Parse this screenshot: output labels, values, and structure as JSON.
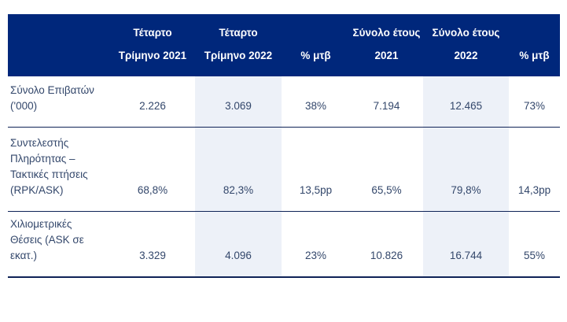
{
  "page": {
    "background": "#ffffff"
  },
  "table": {
    "name": "traffic-results-table",
    "colors": {
      "header_bg": "#00277b",
      "header_text": "#ffffff",
      "body_text": "#33476b",
      "highlight_bg": "#edf1f8",
      "border": "#0f2357"
    },
    "headers": [
      {
        "label": ""
      },
      {
        "label": "Τέταρτο\nΤρίμηνο 2021"
      },
      {
        "label": "Τέταρτο\nΤρίμηνο 2022",
        "highlight": true
      },
      {
        "label": "% μτβ"
      },
      {
        "label": "Σύνολο έτους\n2021"
      },
      {
        "label": "Σύνολο έτους\n2022",
        "highlight": true
      },
      {
        "label": "% μτβ"
      }
    ],
    "rows": [
      {
        "label": "Σύνολο Επιβατών\n('000)",
        "values": [
          "2.226",
          "3.069",
          "38%",
          "7.194",
          "12.465",
          "73%"
        ]
      },
      {
        "label": "Συντελεστής\nΠληρότητας –\nΤακτικές πτήσεις\n(RPK/ASK)",
        "values": [
          "68,8%",
          "82,3%",
          "13,5pp",
          "65,5%",
          "79,8%",
          "14,3pp"
        ]
      },
      {
        "label": "Χιλιομετρικές\nΘέσεις (ASK σε\nεκατ.)",
        "values": [
          "3.329",
          "4.096",
          "23%",
          "10.826",
          "16.744",
          "55%"
        ]
      }
    ]
  }
}
